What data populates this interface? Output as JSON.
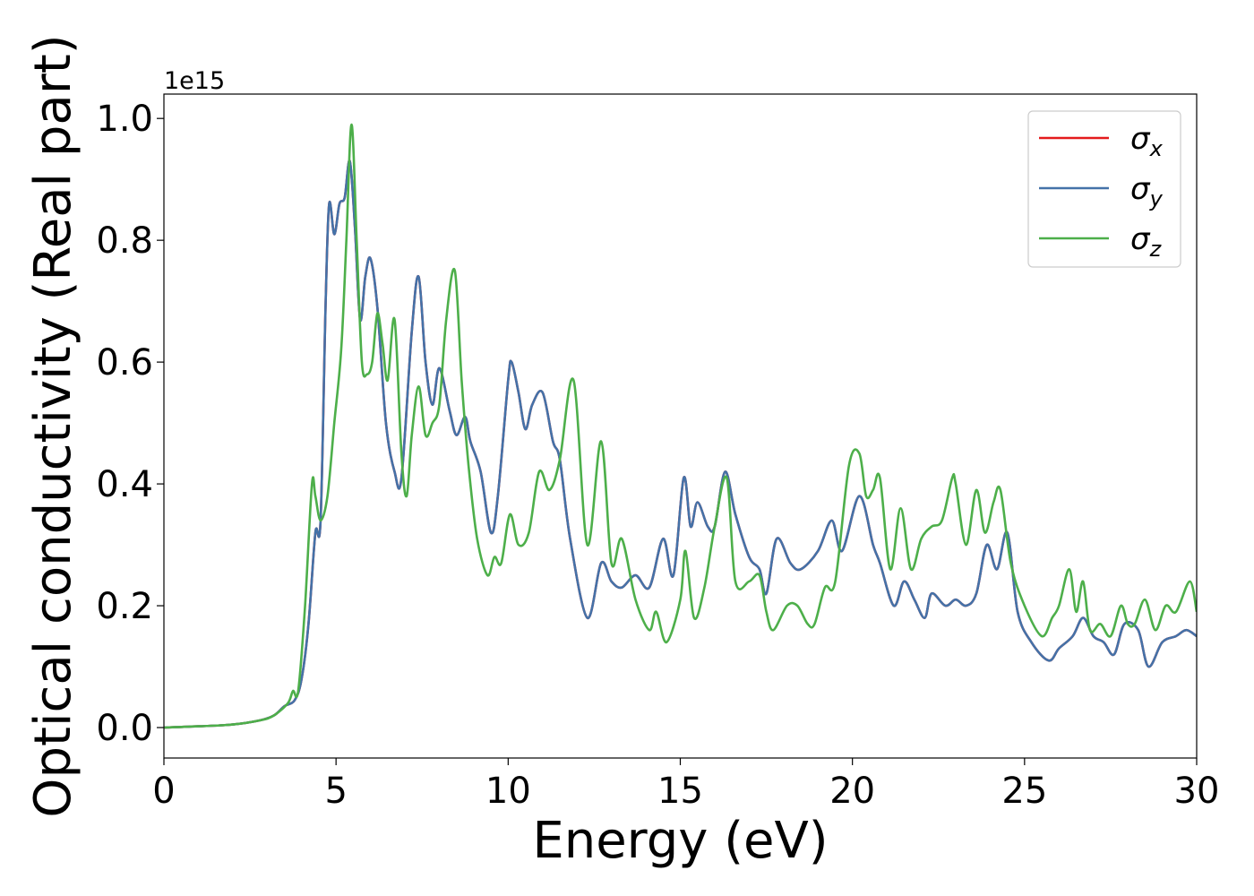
{
  "chart_data": {
    "type": "line",
    "xlabel": "Energy (eV)",
    "ylabel": "Optical conductivity (Real part)",
    "y_offset_label": "1e15",
    "xlim": [
      0,
      30
    ],
    "ylim": [
      -0.05,
      1.04
    ],
    "x_ticks": [
      0,
      5,
      10,
      15,
      20,
      25,
      30
    ],
    "y_ticks": [
      0.0,
      0.2,
      0.4,
      0.6,
      0.8,
      1.0
    ],
    "x_tick_labels": [
      "0",
      "5",
      "10",
      "15",
      "20",
      "25",
      "30"
    ],
    "y_tick_labels": [
      "0.0",
      "0.2",
      "0.4",
      "0.6",
      "0.8",
      "1.0"
    ],
    "grid": false,
    "legend_position": "top-right",
    "series": [
      {
        "name": "σx",
        "symbol": "σ",
        "subscript": "x",
        "color": "#e41a1c",
        "x": [
          0,
          1,
          2,
          2.8,
          3.2,
          3.5,
          3.8,
          4.0,
          4.2,
          4.4,
          4.55,
          4.7,
          4.8,
          4.95,
          5.1,
          5.25,
          5.4,
          5.55,
          5.7,
          5.85,
          6.0,
          6.2,
          6.45,
          6.7,
          6.9,
          7.2,
          7.4,
          7.6,
          7.8,
          8.0,
          8.3,
          8.5,
          8.75,
          8.9,
          9.2,
          9.5,
          9.7,
          10.0,
          10.1,
          10.3,
          10.5,
          10.7,
          11.0,
          11.3,
          11.5,
          11.8,
          12.3,
          12.7,
          13.0,
          13.3,
          13.7,
          14.1,
          14.5,
          14.8,
          15.1,
          15.3,
          15.5,
          15.8,
          16.0,
          16.3,
          16.6,
          17.0,
          17.3,
          17.5,
          17.8,
          18.2,
          18.5,
          19.0,
          19.4,
          19.7,
          20.2,
          20.6,
          20.8,
          21.2,
          21.5,
          21.8,
          22.1,
          22.3,
          22.7,
          23.0,
          23.3,
          23.6,
          23.9,
          24.2,
          24.5,
          24.8,
          25.2,
          25.7,
          26.0,
          26.4,
          26.7,
          27.0,
          27.3,
          27.6,
          27.9,
          28.3,
          28.6,
          29.0,
          29.4,
          29.7,
          30.0
        ],
        "y": [
          0.0,
          0.002,
          0.005,
          0.012,
          0.02,
          0.035,
          0.045,
          0.08,
          0.17,
          0.32,
          0.34,
          0.7,
          0.86,
          0.81,
          0.86,
          0.87,
          0.93,
          0.82,
          0.67,
          0.74,
          0.77,
          0.69,
          0.5,
          0.42,
          0.41,
          0.65,
          0.74,
          0.6,
          0.53,
          0.59,
          0.52,
          0.48,
          0.51,
          0.47,
          0.42,
          0.32,
          0.38,
          0.57,
          0.6,
          0.55,
          0.49,
          0.53,
          0.55,
          0.47,
          0.44,
          0.31,
          0.18,
          0.27,
          0.24,
          0.23,
          0.25,
          0.23,
          0.31,
          0.25,
          0.41,
          0.33,
          0.37,
          0.33,
          0.33,
          0.42,
          0.35,
          0.28,
          0.26,
          0.22,
          0.31,
          0.27,
          0.26,
          0.29,
          0.34,
          0.29,
          0.38,
          0.3,
          0.27,
          0.2,
          0.24,
          0.21,
          0.18,
          0.22,
          0.2,
          0.21,
          0.2,
          0.22,
          0.3,
          0.26,
          0.32,
          0.19,
          0.14,
          0.11,
          0.13,
          0.15,
          0.18,
          0.15,
          0.14,
          0.12,
          0.17,
          0.16,
          0.1,
          0.14,
          0.15,
          0.16,
          0.15
        ]
      },
      {
        "name": "σy",
        "symbol": "σ",
        "subscript": "y",
        "color": "#4472a8",
        "x": [
          0,
          1,
          2,
          2.8,
          3.2,
          3.5,
          3.8,
          4.0,
          4.2,
          4.4,
          4.55,
          4.7,
          4.8,
          4.95,
          5.1,
          5.25,
          5.4,
          5.55,
          5.7,
          5.85,
          6.0,
          6.2,
          6.45,
          6.7,
          6.9,
          7.2,
          7.4,
          7.6,
          7.8,
          8.0,
          8.3,
          8.5,
          8.75,
          8.9,
          9.2,
          9.5,
          9.7,
          10.0,
          10.1,
          10.3,
          10.5,
          10.7,
          11.0,
          11.3,
          11.5,
          11.8,
          12.3,
          12.7,
          13.0,
          13.3,
          13.7,
          14.1,
          14.5,
          14.8,
          15.1,
          15.3,
          15.5,
          15.8,
          16.0,
          16.3,
          16.6,
          17.0,
          17.3,
          17.5,
          17.8,
          18.2,
          18.5,
          19.0,
          19.4,
          19.7,
          20.2,
          20.6,
          20.8,
          21.2,
          21.5,
          21.8,
          22.1,
          22.3,
          22.7,
          23.0,
          23.3,
          23.6,
          23.9,
          24.2,
          24.5,
          24.8,
          25.2,
          25.7,
          26.0,
          26.4,
          26.7,
          27.0,
          27.3,
          27.6,
          27.9,
          28.3,
          28.6,
          29.0,
          29.4,
          29.7,
          30.0
        ],
        "y": [
          0.0,
          0.002,
          0.005,
          0.012,
          0.02,
          0.035,
          0.045,
          0.08,
          0.17,
          0.32,
          0.34,
          0.7,
          0.86,
          0.81,
          0.86,
          0.87,
          0.93,
          0.82,
          0.67,
          0.74,
          0.77,
          0.69,
          0.5,
          0.42,
          0.41,
          0.65,
          0.74,
          0.6,
          0.53,
          0.59,
          0.52,
          0.48,
          0.51,
          0.47,
          0.42,
          0.32,
          0.38,
          0.57,
          0.6,
          0.55,
          0.49,
          0.53,
          0.55,
          0.47,
          0.44,
          0.31,
          0.18,
          0.27,
          0.24,
          0.23,
          0.25,
          0.23,
          0.31,
          0.25,
          0.41,
          0.33,
          0.37,
          0.33,
          0.33,
          0.42,
          0.35,
          0.28,
          0.26,
          0.22,
          0.31,
          0.27,
          0.26,
          0.29,
          0.34,
          0.29,
          0.38,
          0.3,
          0.27,
          0.2,
          0.24,
          0.21,
          0.18,
          0.22,
          0.2,
          0.21,
          0.2,
          0.22,
          0.3,
          0.26,
          0.32,
          0.19,
          0.14,
          0.11,
          0.13,
          0.15,
          0.18,
          0.15,
          0.14,
          0.12,
          0.17,
          0.16,
          0.1,
          0.14,
          0.15,
          0.16,
          0.15
        ]
      },
      {
        "name": "σz",
        "symbol": "σ",
        "subscript": "z",
        "color": "#4daf4a",
        "x": [
          0,
          1,
          2,
          2.8,
          3.2,
          3.6,
          3.75,
          3.9,
          4.1,
          4.3,
          4.4,
          4.55,
          4.75,
          4.95,
          5.15,
          5.3,
          5.45,
          5.6,
          5.75,
          5.9,
          6.05,
          6.2,
          6.35,
          6.5,
          6.7,
          6.9,
          7.05,
          7.2,
          7.4,
          7.6,
          7.8,
          8.0,
          8.2,
          8.45,
          8.65,
          8.85,
          9.1,
          9.4,
          9.6,
          9.8,
          10.05,
          10.3,
          10.6,
          10.9,
          11.2,
          11.5,
          11.9,
          12.3,
          12.7,
          13.0,
          13.3,
          13.7,
          14.1,
          14.3,
          14.6,
          15.0,
          15.15,
          15.4,
          15.7,
          16.0,
          16.35,
          16.6,
          17.0,
          17.3,
          17.5,
          17.7,
          18.1,
          18.4,
          18.7,
          18.9,
          19.2,
          19.5,
          19.9,
          20.2,
          20.4,
          20.6,
          20.8,
          21.1,
          21.4,
          21.7,
          22.0,
          22.3,
          22.6,
          22.9,
          23.0,
          23.3,
          23.6,
          23.85,
          24.1,
          24.3,
          24.6,
          25.0,
          25.5,
          25.8,
          26.0,
          26.3,
          26.5,
          26.7,
          26.9,
          27.2,
          27.5,
          27.8,
          28.0,
          28.2,
          28.5,
          28.8,
          29.1,
          29.4,
          29.8,
          30.0
        ],
        "y": [
          0.0,
          0.002,
          0.005,
          0.012,
          0.02,
          0.04,
          0.06,
          0.06,
          0.2,
          0.4,
          0.38,
          0.34,
          0.38,
          0.5,
          0.62,
          0.8,
          0.99,
          0.8,
          0.6,
          0.58,
          0.6,
          0.68,
          0.63,
          0.57,
          0.67,
          0.45,
          0.38,
          0.48,
          0.56,
          0.48,
          0.5,
          0.53,
          0.67,
          0.75,
          0.57,
          0.43,
          0.31,
          0.25,
          0.28,
          0.27,
          0.35,
          0.3,
          0.32,
          0.42,
          0.39,
          0.44,
          0.57,
          0.3,
          0.47,
          0.27,
          0.31,
          0.21,
          0.16,
          0.19,
          0.14,
          0.21,
          0.29,
          0.18,
          0.23,
          0.33,
          0.41,
          0.24,
          0.24,
          0.25,
          0.19,
          0.16,
          0.2,
          0.2,
          0.17,
          0.17,
          0.23,
          0.24,
          0.43,
          0.45,
          0.38,
          0.39,
          0.41,
          0.26,
          0.36,
          0.26,
          0.31,
          0.33,
          0.34,
          0.41,
          0.4,
          0.3,
          0.39,
          0.32,
          0.37,
          0.39,
          0.27,
          0.2,
          0.15,
          0.18,
          0.2,
          0.26,
          0.19,
          0.24,
          0.16,
          0.17,
          0.15,
          0.2,
          0.17,
          0.17,
          0.21,
          0.16,
          0.2,
          0.19,
          0.24,
          0.19
        ]
      }
    ]
  }
}
